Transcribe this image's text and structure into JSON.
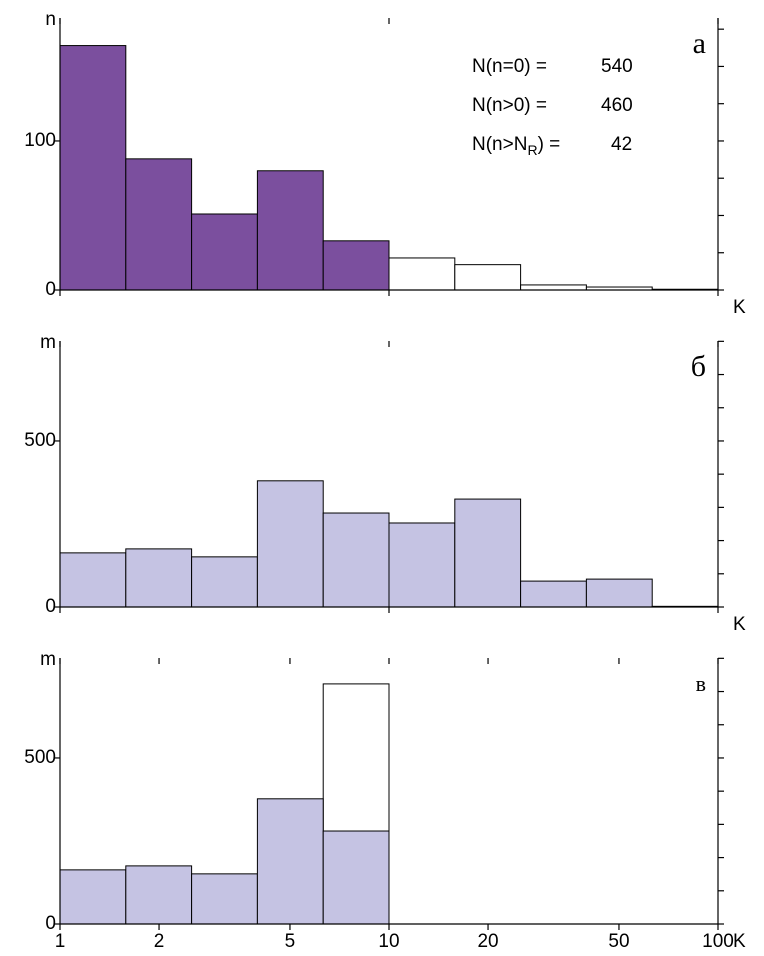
{
  "chart_data": [
    {
      "type": "histogram",
      "y_label": "n",
      "x_label": "K",
      "panel_label": "а",
      "log_x": true,
      "bins": [
        1,
        1.585,
        2.512,
        3.981,
        6.31,
        10,
        15.85,
        25.12,
        39.81,
        63.1,
        100
      ],
      "series": [
        {
          "color": "#7b4f9e",
          "counts": [
            164,
            88,
            51,
            80,
            33,
            null,
            null,
            null,
            null,
            null
          ]
        },
        {
          "color": "#ffffff",
          "counts": [
            null,
            null,
            null,
            null,
            null,
            21.5,
            17,
            3.4,
            2,
            0.5
          ]
        }
      ],
      "xlim": [
        1,
        100
      ],
      "ylim": [
        0,
        182.5
      ],
      "yticks": [
        0,
        100
      ],
      "minor_yticks": [
        0,
        25,
        50,
        75,
        100,
        125,
        150,
        175
      ],
      "xticks": [
        1,
        10,
        100
      ],
      "show_xtick_labels": false,
      "annotations": [
        {
          "text": "N(n=0) =",
          "value": 540
        },
        {
          "text": "N(n>0) =",
          "value": 460
        },
        {
          "text": "N(n>N",
          "sub": "R",
          "after": ") =",
          "value": 42
        }
      ]
    },
    {
      "type": "histogram",
      "y_label": "m",
      "x_label": "K",
      "panel_label": "б",
      "log_x": true,
      "bins": [
        1,
        1.585,
        2.512,
        3.981,
        6.31,
        10,
        15.85,
        25.12,
        39.81,
        63.1,
        100
      ],
      "series": [
        {
          "color": "#c5c3e3",
          "counts": [
            163,
            175,
            151,
            380,
            283,
            253,
            325,
            78,
            84,
            2
          ]
        }
      ],
      "xlim": [
        1,
        100
      ],
      "ylim": [
        0,
        801
      ],
      "yticks": [
        0,
        500
      ],
      "minor_yticks": [
        0,
        100,
        200,
        300,
        400,
        500,
        600,
        700,
        800
      ],
      "xticks": [
        1,
        10,
        100
      ],
      "show_xtick_labels": false
    },
    {
      "type": "histogram",
      "y_label": "m",
      "x_label": "K",
      "panel_label": "в",
      "log_x": true,
      "bins": [
        1,
        1.585,
        2.512,
        3.981,
        6.31,
        10
      ],
      "series": [
        {
          "color": "#ffffff",
          "counts": [
            null,
            null,
            null,
            null,
            723
          ]
        },
        {
          "color": "#c5c3e3",
          "counts": [
            163,
            175,
            151,
            377,
            280
          ]
        }
      ],
      "xlim": [
        1,
        100
      ],
      "ylim": [
        0,
        801
      ],
      "yticks": [
        0,
        500
      ],
      "minor_yticks": [
        0,
        100,
        200,
        300,
        400,
        500,
        600,
        700,
        800
      ],
      "xticks": [
        1,
        2,
        5,
        10,
        20,
        50,
        100
      ],
      "show_xtick_labels": true
    }
  ]
}
